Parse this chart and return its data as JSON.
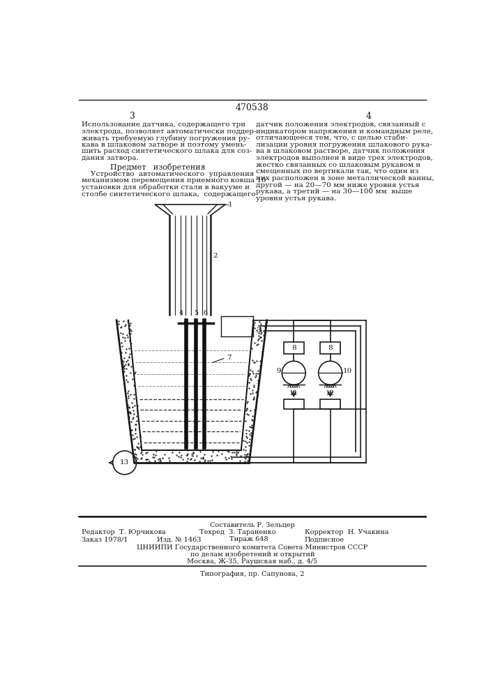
{
  "page_number_left": "3",
  "page_number_right": "4",
  "patent_number": "470538",
  "bg_color": "#ffffff",
  "line_color": "#1a1a1a",
  "footer_editor": "Редактор  Т. Юрчикова",
  "footer_composer": "Составитель Р. Зельцер",
  "footer_tech": "Техред  З. Тараненко",
  "footer_corrector": "Корректор  Н. Учакина",
  "footer_order": "Заказ 1978/1",
  "footer_izd": "Изд. № 1463",
  "footer_tirazh": "Тираж 648",
  "footer_podpis": "Подписное",
  "footer_org": "ЦНИИПИ Государственного комитета Совета Министров СССР",
  "footer_org2": "по делам изобретений и открытий",
  "footer_org3": "Москва, Ж-35, Раушская наб., д. 4/5",
  "footer_print": "Типография, пр. Сапунова, 2"
}
